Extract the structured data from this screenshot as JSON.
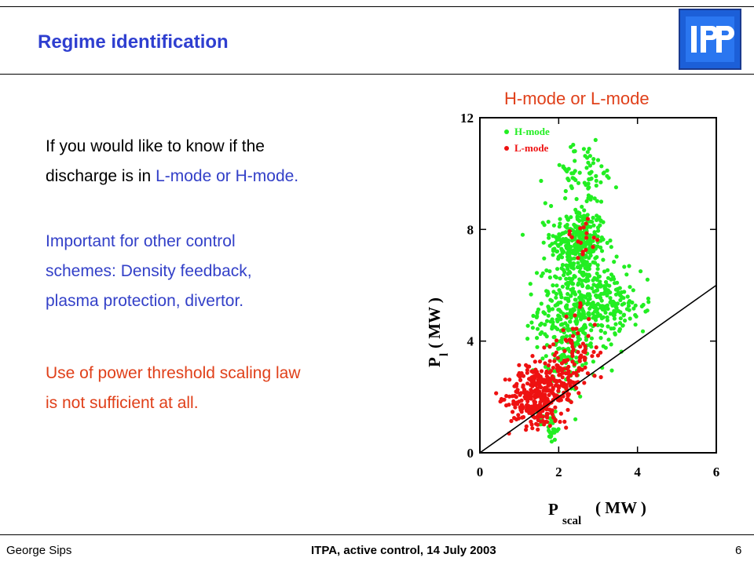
{
  "slide": {
    "title": "Regime identification",
    "logo_text": "IPP",
    "paragraph1": {
      "line1": "If you would like to know if the",
      "line2_pre": "discharge is in ",
      "line2_highlight": "L-mode or H-mode."
    },
    "paragraph2": {
      "line1": "Important for other control",
      "line2": "schemes: Density feedback,",
      "line3": "plasma protection, divertor."
    },
    "paragraph3": {
      "line1": "Use of power threshold scaling law",
      "line2": "is not sufficient at all."
    },
    "chart_heading": "H-mode or L-mode"
  },
  "footer": {
    "left": "George Sips",
    "center": "ITPA, active control, 14 July 2003",
    "right": "6"
  },
  "colors": {
    "title": "#2f3fd0",
    "h_mode": "#22ee22",
    "l_mode": "#ee1111",
    "highlight_blue": "#3340c8",
    "highlight_red": "#e0401a"
  },
  "chart_data": {
    "type": "scatter",
    "xlabel_main": "P",
    "xlabel_sub": "scal",
    "xlabel_unit": "( MW )",
    "ylabel_main": "P",
    "ylabel_sub": "l",
    "ylabel_unit": "( MW )",
    "xlim": [
      0,
      6
    ],
    "ylim": [
      0,
      12
    ],
    "xticks": [
      "0",
      "2",
      "4",
      "6"
    ],
    "yticks": [
      "0",
      "4",
      "8",
      "12"
    ],
    "legend_position": "top-left",
    "series": [
      {
        "name": "H-mode",
        "color": "#22ee22",
        "clusters": [
          {
            "cx": 2.5,
            "cy": 7.5,
            "sx": 0.35,
            "sy": 0.65,
            "n": 320
          },
          {
            "cx": 2.6,
            "cy": 5.2,
            "sx": 0.55,
            "sy": 0.75,
            "n": 380
          },
          {
            "cx": 2.6,
            "cy": 10.0,
            "sx": 0.45,
            "sy": 0.55,
            "n": 70
          },
          {
            "cx": 2.1,
            "cy": 3.3,
            "sx": 0.35,
            "sy": 0.8,
            "n": 90
          },
          {
            "cx": 3.5,
            "cy": 5.3,
            "sx": 0.35,
            "sy": 0.35,
            "n": 60
          },
          {
            "cx": 1.8,
            "cy": 1.0,
            "sx": 0.15,
            "sy": 0.35,
            "n": 30
          }
        ]
      },
      {
        "name": "L-mode",
        "color": "#ee1111",
        "clusters": [
          {
            "cx": 1.35,
            "cy": 2.0,
            "sx": 0.3,
            "sy": 0.55,
            "n": 230
          },
          {
            "cx": 1.95,
            "cy": 2.5,
            "sx": 0.3,
            "sy": 0.6,
            "n": 150
          },
          {
            "cx": 2.5,
            "cy": 3.6,
            "sx": 0.25,
            "sy": 0.7,
            "n": 60
          },
          {
            "cx": 2.6,
            "cy": 7.8,
            "sx": 0.25,
            "sy": 0.35,
            "n": 18
          }
        ]
      }
    ],
    "threshold_line": {
      "x": [
        0,
        6
      ],
      "y": [
        0,
        6
      ]
    }
  }
}
